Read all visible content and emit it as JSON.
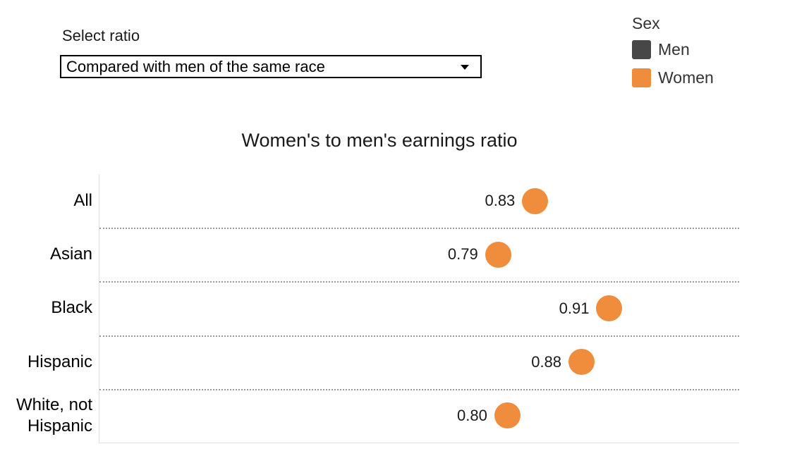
{
  "controls": {
    "select_label": "Select ratio",
    "select_value": "Compared with men of the same race"
  },
  "legend": {
    "title": "Sex",
    "items": [
      {
        "label": "Men",
        "color": "#474747"
      },
      {
        "label": "Women",
        "color": "#EF8D3C"
      }
    ]
  },
  "chart_data": {
    "type": "scatter",
    "title": "Women's to men's earnings ratio",
    "categories": [
      "All",
      "Asian",
      "Black",
      "Hispanic",
      "White, not Hispanic"
    ],
    "series": [
      {
        "name": "Women",
        "color": "#EF8D3C",
        "values": [
          0.83,
          0.79,
          0.91,
          0.88,
          0.8
        ]
      }
    ],
    "value_labels": [
      "0.83",
      "0.79",
      "0.91",
      "0.88",
      "0.80"
    ],
    "xlim": [
      0.36,
      1.05
    ],
    "xlabel": "",
    "ylabel": "",
    "grid": "dotted-row-separators",
    "legend_position": "top-right",
    "marker_diameter_px": 37
  }
}
